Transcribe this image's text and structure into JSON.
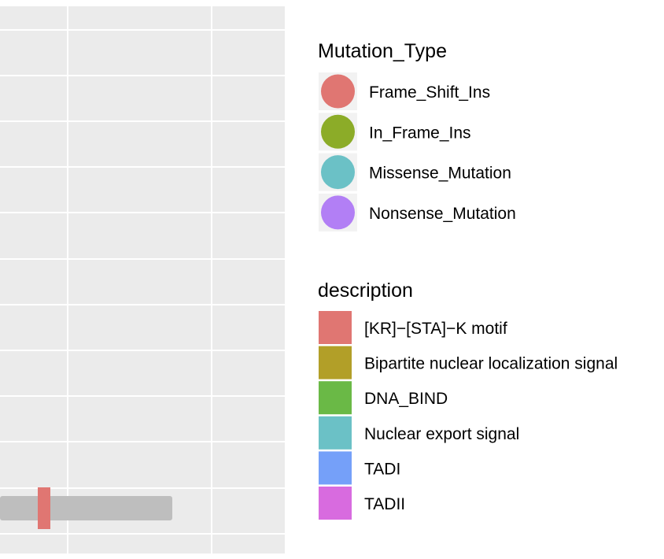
{
  "chart_data": {
    "type": "lollipop",
    "panel_background": "#EBEBEB",
    "grid": true,
    "protein_track": {
      "color": "#BEBEBE",
      "domains": [
        {
          "name": "[KR]−[STA]−K motif",
          "color": "#E07672"
        }
      ]
    },
    "legends": [
      {
        "title": "Mutation_Type",
        "kind": "circle",
        "entries": [
          {
            "label": "Frame_Shift_Ins",
            "color": "#E07672"
          },
          {
            "label": "In_Frame_Ins",
            "color": "#8CAC28"
          },
          {
            "label": "Missense_Mutation",
            "color": "#6BC1C6"
          },
          {
            "label": "Nonsense_Mutation",
            "color": "#B27FF5"
          }
        ]
      },
      {
        "title": "description",
        "kind": "square",
        "entries": [
          {
            "label": "[KR]−[STA]−K motif",
            "color": "#E07672"
          },
          {
            "label": "Bipartite nuclear localization signal",
            "color": "#B29F28"
          },
          {
            "label": "DNA_BIND",
            "color": "#6AB946"
          },
          {
            "label": "Nuclear export signal",
            "color": "#6BC1C6"
          },
          {
            "label": "TADI",
            "color": "#75A0F9"
          },
          {
            "label": "TADII",
            "color": "#D86BDF"
          }
        ]
      }
    ]
  }
}
